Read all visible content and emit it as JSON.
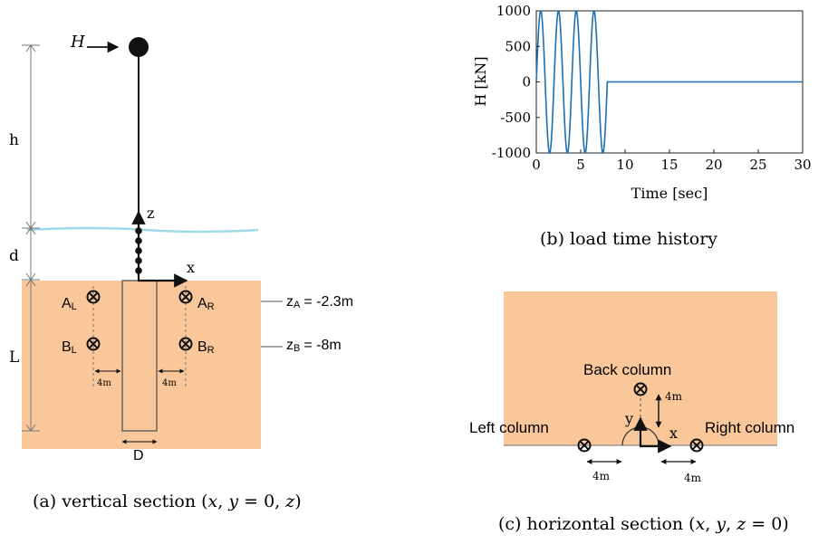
{
  "colors": {
    "soil": "#f9c79a",
    "water": "#9fd9ea",
    "line": "#111111",
    "wave": "#1f6fb0",
    "dim": "#555555"
  },
  "panel_a": {
    "caption": "(a) vertical section (x, y = 0, z)",
    "h_symbol": "H",
    "h_label": "h",
    "d_label": "d",
    "l_label": "L",
    "D_label": "D",
    "x_axis": "x",
    "z_axis": "z",
    "sensors": {
      "AL": {
        "main": "A",
        "sub": "L"
      },
      "AR": {
        "main": "A",
        "sub": "R"
      },
      "BL": {
        "main": "B",
        "sub": "L"
      },
      "BR": {
        "main": "B",
        "sub": "R"
      }
    },
    "za_label": {
      "main": "z",
      "sub": "A",
      "value": "= -2.3m"
    },
    "zb_label": {
      "main": "z",
      "sub": "B",
      "value": "= -8m"
    },
    "spacing_left": "4m",
    "spacing_right": "4m"
  },
  "panel_b": {
    "caption": "(b) load time history",
    "chart_data": {
      "type": "line",
      "xlabel": "Time [sec]",
      "ylabel": "H [kN]",
      "xlim": [
        0,
        30
      ],
      "ylim": [
        -1000,
        1000
      ],
      "x_ticks": [
        "0",
        "5",
        "10",
        "15",
        "20",
        "25",
        "30"
      ],
      "y_ticks": [
        "1000",
        "500",
        "0",
        "-500",
        "-1000"
      ],
      "grid": false,
      "series": [
        {
          "amplitude": 1000,
          "period": 2,
          "cycles": 4,
          "end_time": 8,
          "after_value": 0
        }
      ]
    }
  },
  "panel_c": {
    "caption": "(c) horizontal section (x, y, z = 0)",
    "back_column": "Back column",
    "left_column": "Left column",
    "right_column": "Right column",
    "back_spacing": "4m",
    "left_spacing": "4m",
    "right_spacing": "4m",
    "x_axis": "x",
    "y_axis": "y"
  }
}
